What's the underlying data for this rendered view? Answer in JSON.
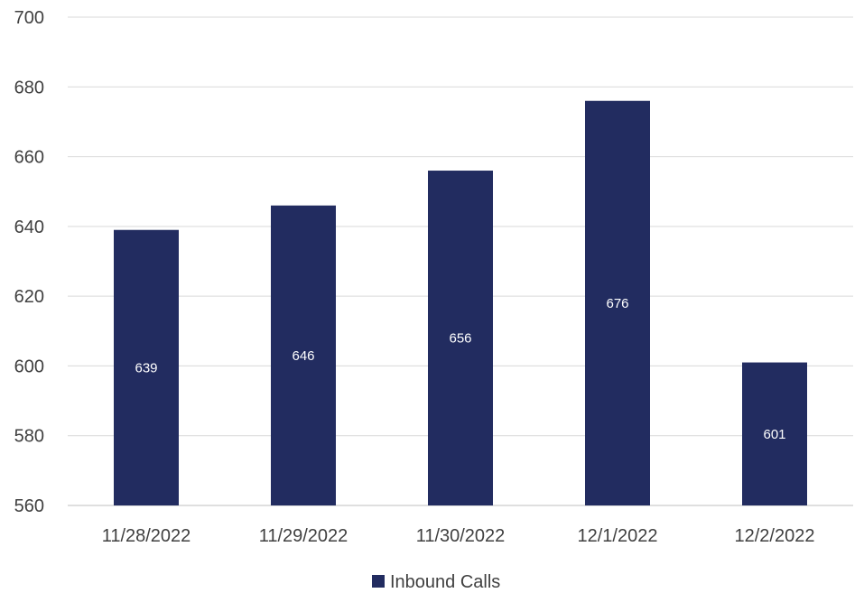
{
  "chart_data": {
    "type": "bar",
    "categories": [
      "11/28/2022",
      "11/29/2022",
      "11/30/2022",
      "12/1/2022",
      "12/2/2022"
    ],
    "series": [
      {
        "name": "Inbound Calls",
        "values": [
          639,
          646,
          656,
          676,
          601
        ]
      }
    ],
    "ylim": [
      560,
      700
    ],
    "yticks": [
      560,
      580,
      600,
      620,
      640,
      660,
      680,
      700
    ],
    "grid": true,
    "legend": "bottom",
    "data_labels": true,
    "colors": {
      "bar": "#222c60",
      "grid": "#d9d9d9",
      "axis": "#bfbfbf",
      "text": "#404040",
      "label": "#ffffff"
    }
  }
}
